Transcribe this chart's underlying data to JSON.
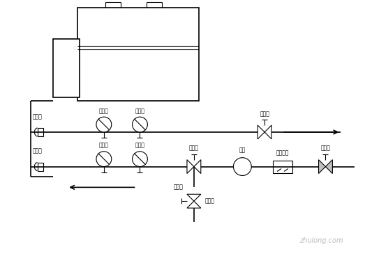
{
  "bg_color": "#ffffff",
  "line_color": "#000000",
  "lw": 1.2,
  "tlw": 0.8,
  "fig_width": 5.23,
  "fig_height": 3.71,
  "labels": {
    "pressure_gauge": "压力表",
    "temp_gauge": "温度表",
    "pipe_connector": "管接头",
    "service_valve": "维修阀",
    "control_valve": "调节阀",
    "water_pump": "水泵",
    "water_filter": "水过滤器",
    "drain": "排水管"
  }
}
